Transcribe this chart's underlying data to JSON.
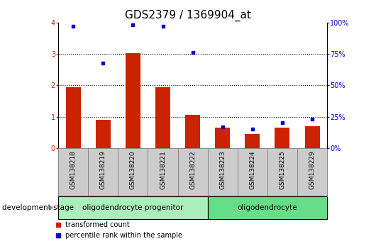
{
  "title": "GDS2379 / 1369904_at",
  "categories": [
    "GSM138218",
    "GSM138219",
    "GSM138220",
    "GSM138221",
    "GSM138222",
    "GSM138223",
    "GSM138224",
    "GSM138225",
    "GSM138229"
  ],
  "red_values": [
    1.95,
    0.9,
    3.02,
    1.95,
    1.05,
    0.65,
    0.45,
    0.65,
    0.7
  ],
  "blue_values": [
    97,
    68,
    98,
    97,
    76,
    17,
    15,
    20,
    23
  ],
  "bar_color": "#cc2200",
  "dot_color": "#0000cc",
  "left_ylim": [
    0,
    4
  ],
  "left_yticks": [
    0,
    1,
    2,
    3,
    4
  ],
  "right_ylim": [
    0,
    100
  ],
  "right_yticks": [
    0,
    25,
    50,
    75,
    100
  ],
  "right_yticklabels": [
    "0%",
    "25%",
    "50%",
    "75%",
    "100%"
  ],
  "groups": [
    {
      "label": "oligodendrocyte progenitor",
      "start": 0,
      "end": 4,
      "color": "#aaeebb"
    },
    {
      "label": "oligodendrocyte",
      "start": 5,
      "end": 8,
      "color": "#66dd88"
    }
  ],
  "dev_stage_label": "development stage",
  "legend_red": "transformed count",
  "legend_blue": "percentile rank within the sample",
  "col_bg_color": "#cccccc",
  "title_fontsize": 11
}
